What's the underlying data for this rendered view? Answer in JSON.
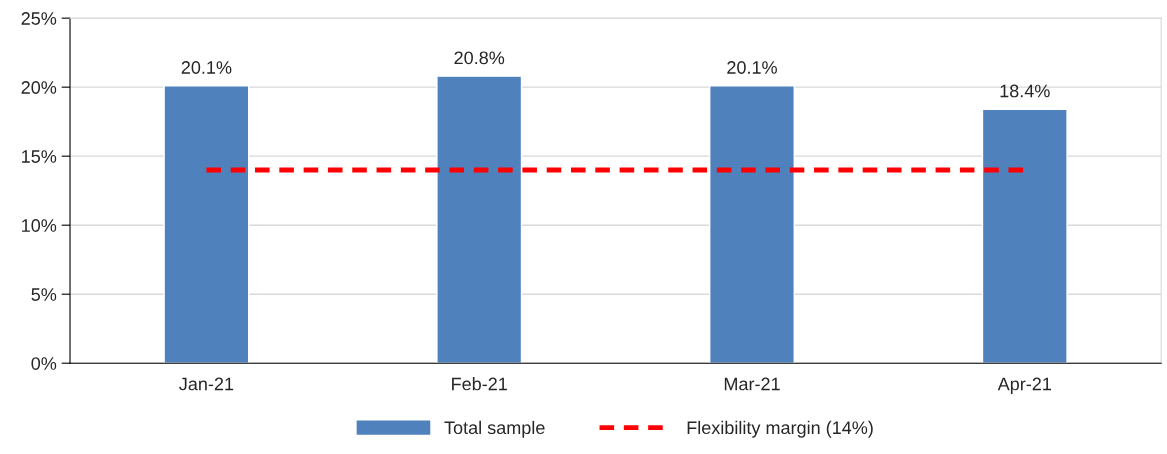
{
  "chart_data": {
    "type": "bar",
    "categories": [
      "Jan-21",
      "Feb-21",
      "Mar-21",
      "Apr-21"
    ],
    "series": [
      {
        "name": "Total sample",
        "color": "#4f81bd",
        "values": [
          20.1,
          20.8,
          20.1,
          18.4
        ],
        "value_labels": [
          "20.1%",
          "20.8%",
          "20.1%",
          "18.4%"
        ]
      },
      {
        "name": "Flexibility margin (14%)",
        "type": "line",
        "color": "#ff0000",
        "line_style": "dashed",
        "values": [
          14,
          14,
          14,
          14
        ]
      }
    ],
    "ylim": [
      0,
      25
    ],
    "yticks": [
      {
        "value": 0,
        "label": "0%"
      },
      {
        "value": 5,
        "label": "5%"
      },
      {
        "value": 10,
        "label": "10%"
      },
      {
        "value": 15,
        "label": "15%"
      },
      {
        "value": 20,
        "label": "20%"
      },
      {
        "value": 25,
        "label": "25%"
      }
    ],
    "grid": "y",
    "legend": "bottom"
  }
}
